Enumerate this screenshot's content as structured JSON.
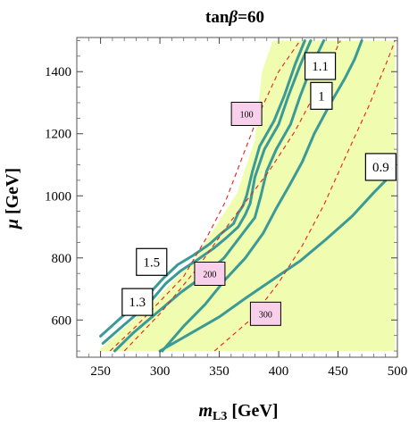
{
  "chart_data": {
    "type": "line",
    "title": "tanβ=60",
    "title_parts": {
      "prefix": "tan",
      "symbol": "β",
      "suffix": "=60"
    },
    "xlabel": "m_L3 [GeV]",
    "xlabel_parts": {
      "main": "m",
      "sub": "L3",
      "unit": " [GeV]"
    },
    "ylabel": "μ [GeV]",
    "ylabel_parts": {
      "main": "μ",
      "unit": " [GeV]"
    },
    "xlim": [
      230,
      500
    ],
    "ylim": [
      480,
      1510
    ],
    "x_ticks": [
      250,
      300,
      350,
      400,
      450,
      500
    ],
    "y_ticks": [
      600,
      800,
      1000,
      1200,
      1400
    ],
    "x_tick_labels": [
      "250",
      "300",
      "350",
      "400",
      "450",
      "500"
    ],
    "y_tick_labels": [
      "600",
      "800",
      "1000",
      "1200",
      "1400"
    ],
    "allowed_region": {
      "color": "#f0fcb0",
      "boundary": [
        [
          248,
          500
        ],
        [
          295,
          660
        ],
        [
          330,
          800
        ],
        [
          365,
          1010
        ],
        [
          380,
          1180
        ],
        [
          386,
          1400
        ],
        [
          395,
          1500
        ],
        [
          498,
          1500
        ],
        [
          498,
          500
        ]
      ]
    },
    "contour_series": [
      {
        "label": "1.5",
        "color": "#3a9a96",
        "points": [
          [
            250,
            548
          ],
          [
            268,
            610
          ],
          [
            288,
            672
          ],
          [
            303,
            735
          ],
          [
            315,
            778
          ],
          [
            328,
            808
          ],
          [
            342,
            845
          ],
          [
            352,
            880
          ],
          [
            362,
            910
          ],
          [
            366,
            945
          ],
          [
            370,
            968
          ],
          [
            373,
            1000
          ],
          [
            378,
            1080
          ],
          [
            384,
            1160
          ],
          [
            396,
            1240
          ],
          [
            405,
            1325
          ],
          [
            414,
            1425
          ],
          [
            422,
            1500
          ]
        ]
      },
      {
        "label": "1.3",
        "color": "#3a9a96",
        "points": [
          [
            252,
            525
          ],
          [
            270,
            585
          ],
          [
            290,
            650
          ],
          [
            305,
            718
          ],
          [
            318,
            760
          ],
          [
            332,
            795
          ],
          [
            345,
            830
          ],
          [
            356,
            865
          ],
          [
            366,
            900
          ],
          [
            372,
            940
          ],
          [
            376,
            975
          ],
          [
            380,
            1060
          ],
          [
            388,
            1150
          ],
          [
            400,
            1230
          ],
          [
            408,
            1320
          ],
          [
            418,
            1420
          ],
          [
            427,
            1500
          ]
        ]
      },
      {
        "label": "1.1",
        "color": "#3a9a96",
        "points": [
          [
            262,
            500
          ],
          [
            278,
            560
          ],
          [
            298,
            625
          ],
          [
            318,
            690
          ],
          [
            338,
            745
          ],
          [
            354,
            800
          ],
          [
            368,
            870
          ],
          [
            380,
            930
          ],
          [
            385,
            1000
          ],
          [
            390,
            1080
          ],
          [
            398,
            1150
          ],
          [
            410,
            1230
          ],
          [
            418,
            1320
          ],
          [
            428,
            1420
          ],
          [
            438,
            1500
          ]
        ]
      },
      {
        "label": "1",
        "color": "#3a9a96",
        "points": [
          [
            302,
            500
          ],
          [
            320,
            580
          ],
          [
            338,
            650
          ],
          [
            355,
            730
          ],
          [
            372,
            800
          ],
          [
            387,
            880
          ],
          [
            398,
            960
          ],
          [
            410,
            1040
          ],
          [
            420,
            1110
          ],
          [
            430,
            1200
          ],
          [
            444,
            1300
          ],
          [
            456,
            1380
          ],
          [
            464,
            1440
          ],
          [
            470,
            1500
          ]
        ]
      },
      {
        "label": "0.9",
        "color": "#3a9a96",
        "points": [
          [
            300,
            500
          ],
          [
            325,
            555
          ],
          [
            350,
            610
          ],
          [
            372,
            670
          ],
          [
            395,
            730
          ],
          [
            418,
            790
          ],
          [
            440,
            860
          ],
          [
            462,
            935
          ],
          [
            480,
            1010
          ],
          [
            498,
            1080
          ]
        ]
      }
    ],
    "dashed_lines": [
      {
        "label": "100",
        "color": "#e82020",
        "points": [
          [
            258,
            500
          ],
          [
            280,
            580
          ],
          [
            300,
            660
          ],
          [
            320,
            740
          ],
          [
            340,
            870
          ],
          [
            355,
            980
          ],
          [
            370,
            1130
          ],
          [
            383,
            1260
          ],
          [
            400,
            1400
          ],
          [
            418,
            1500
          ]
        ]
      },
      {
        "label": "200",
        "color": "#e82020",
        "points": [
          [
            270,
            500
          ],
          [
            300,
            620
          ],
          [
            330,
            760
          ],
          [
            360,
            920
          ],
          [
            392,
            1080
          ],
          [
            414,
            1210
          ],
          [
            432,
            1340
          ],
          [
            452,
            1500
          ]
        ]
      },
      {
        "label": "300",
        "color": "#e82020",
        "points": [
          [
            346,
            500
          ],
          [
            376,
            600
          ],
          [
            400,
            720
          ],
          [
            420,
            840
          ],
          [
            438,
            970
          ],
          [
            458,
            1140
          ],
          [
            476,
            1290
          ],
          [
            492,
            1440
          ],
          [
            498,
            1500
          ]
        ]
      }
    ],
    "box_labels": [
      {
        "text": "1.1",
        "x": 435,
        "y": 1418
      },
      {
        "text": "1",
        "x": 436,
        "y": 1322
      },
      {
        "text": "0.9",
        "x": 486,
        "y": 1093
      },
      {
        "text": "1.5",
        "x": 293,
        "y": 787
      },
      {
        "text": "1.3",
        "x": 281,
        "y": 658
      }
    ],
    "pink_labels": [
      {
        "text": "100",
        "x": 373,
        "y": 1264
      },
      {
        "text": "200",
        "x": 342,
        "y": 749
      },
      {
        "text": "300",
        "x": 389,
        "y": 620
      }
    ],
    "grid": false,
    "legend": "none"
  }
}
